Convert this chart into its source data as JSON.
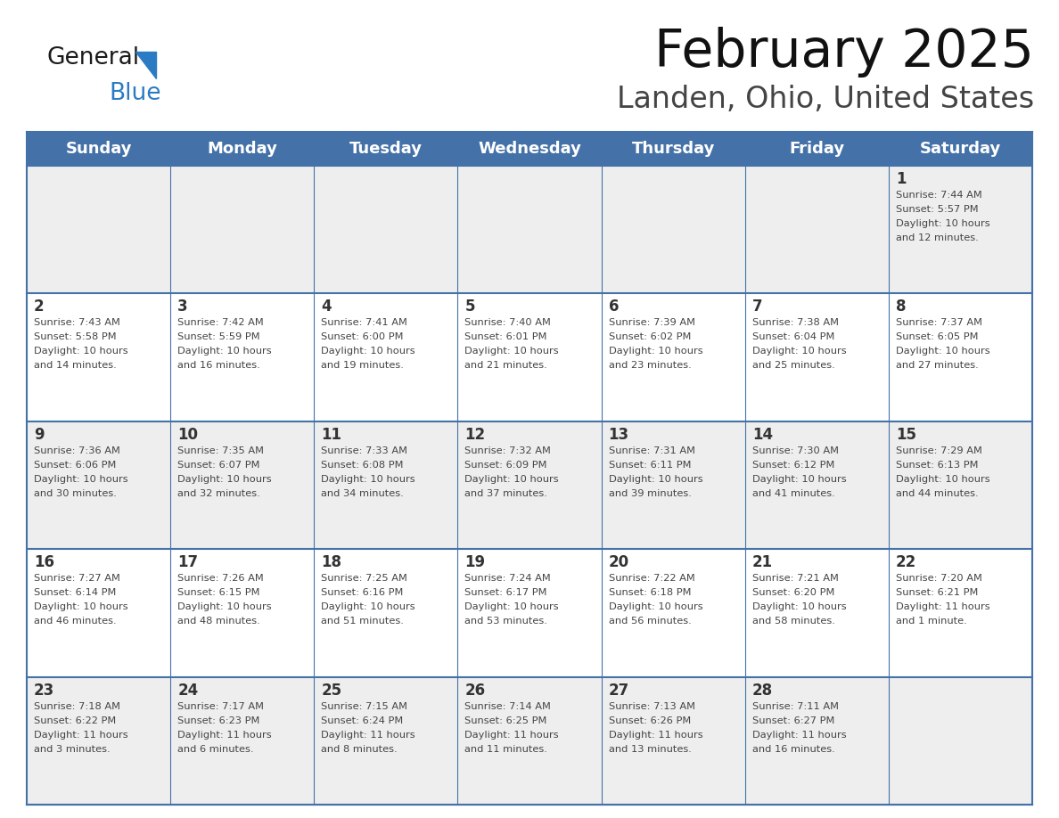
{
  "title": "February 2025",
  "subtitle": "Landen, Ohio, United States",
  "header_bg": "#4472A8",
  "header_text_color": "#FFFFFF",
  "days_of_week": [
    "Sunday",
    "Monday",
    "Tuesday",
    "Wednesday",
    "Thursday",
    "Friday",
    "Saturday"
  ],
  "row_colors": [
    "#EEEEEE",
    "#FFFFFF"
  ],
  "border_color": "#4472A8",
  "text_color": "#333333",
  "calendar_data": [
    [
      null,
      null,
      null,
      null,
      null,
      null,
      {
        "day": "1",
        "sunrise": "7:44 AM",
        "sunset": "5:57 PM",
        "daylight": "10 hours and 12 minutes."
      }
    ],
    [
      {
        "day": "2",
        "sunrise": "7:43 AM",
        "sunset": "5:58 PM",
        "daylight": "10 hours and 14 minutes."
      },
      {
        "day": "3",
        "sunrise": "7:42 AM",
        "sunset": "5:59 PM",
        "daylight": "10 hours and 16 minutes."
      },
      {
        "day": "4",
        "sunrise": "7:41 AM",
        "sunset": "6:00 PM",
        "daylight": "10 hours and 19 minutes."
      },
      {
        "day": "5",
        "sunrise": "7:40 AM",
        "sunset": "6:01 PM",
        "daylight": "10 hours and 21 minutes."
      },
      {
        "day": "6",
        "sunrise": "7:39 AM",
        "sunset": "6:02 PM",
        "daylight": "10 hours and 23 minutes."
      },
      {
        "day": "7",
        "sunrise": "7:38 AM",
        "sunset": "6:04 PM",
        "daylight": "10 hours and 25 minutes."
      },
      {
        "day": "8",
        "sunrise": "7:37 AM",
        "sunset": "6:05 PM",
        "daylight": "10 hours and 27 minutes."
      }
    ],
    [
      {
        "day": "9",
        "sunrise": "7:36 AM",
        "sunset": "6:06 PM",
        "daylight": "10 hours and 30 minutes."
      },
      {
        "day": "10",
        "sunrise": "7:35 AM",
        "sunset": "6:07 PM",
        "daylight": "10 hours and 32 minutes."
      },
      {
        "day": "11",
        "sunrise": "7:33 AM",
        "sunset": "6:08 PM",
        "daylight": "10 hours and 34 minutes."
      },
      {
        "day": "12",
        "sunrise": "7:32 AM",
        "sunset": "6:09 PM",
        "daylight": "10 hours and 37 minutes."
      },
      {
        "day": "13",
        "sunrise": "7:31 AM",
        "sunset": "6:11 PM",
        "daylight": "10 hours and 39 minutes."
      },
      {
        "day": "14",
        "sunrise": "7:30 AM",
        "sunset": "6:12 PM",
        "daylight": "10 hours and 41 minutes."
      },
      {
        "day": "15",
        "sunrise": "7:29 AM",
        "sunset": "6:13 PM",
        "daylight": "10 hours and 44 minutes."
      }
    ],
    [
      {
        "day": "16",
        "sunrise": "7:27 AM",
        "sunset": "6:14 PM",
        "daylight": "10 hours and 46 minutes."
      },
      {
        "day": "17",
        "sunrise": "7:26 AM",
        "sunset": "6:15 PM",
        "daylight": "10 hours and 48 minutes."
      },
      {
        "day": "18",
        "sunrise": "7:25 AM",
        "sunset": "6:16 PM",
        "daylight": "10 hours and 51 minutes."
      },
      {
        "day": "19",
        "sunrise": "7:24 AM",
        "sunset": "6:17 PM",
        "daylight": "10 hours and 53 minutes."
      },
      {
        "day": "20",
        "sunrise": "7:22 AM",
        "sunset": "6:18 PM",
        "daylight": "10 hours and 56 minutes."
      },
      {
        "day": "21",
        "sunrise": "7:21 AM",
        "sunset": "6:20 PM",
        "daylight": "10 hours and 58 minutes."
      },
      {
        "day": "22",
        "sunrise": "7:20 AM",
        "sunset": "6:21 PM",
        "daylight": "11 hours and 1 minute."
      }
    ],
    [
      {
        "day": "23",
        "sunrise": "7:18 AM",
        "sunset": "6:22 PM",
        "daylight": "11 hours and 3 minutes."
      },
      {
        "day": "24",
        "sunrise": "7:17 AM",
        "sunset": "6:23 PM",
        "daylight": "11 hours and 6 minutes."
      },
      {
        "day": "25",
        "sunrise": "7:15 AM",
        "sunset": "6:24 PM",
        "daylight": "11 hours and 8 minutes."
      },
      {
        "day": "26",
        "sunrise": "7:14 AM",
        "sunset": "6:25 PM",
        "daylight": "11 hours and 11 minutes."
      },
      {
        "day": "27",
        "sunrise": "7:13 AM",
        "sunset": "6:26 PM",
        "daylight": "11 hours and 13 minutes."
      },
      {
        "day": "28",
        "sunrise": "7:11 AM",
        "sunset": "6:27 PM",
        "daylight": "11 hours and 16 minutes."
      },
      null
    ]
  ],
  "logo_color_general": "#1a1a1a",
  "logo_color_blue": "#2B7BC4",
  "logo_triangle_color": "#2B7BC4",
  "fig_width": 11.88,
  "fig_height": 9.18,
  "dpi": 100
}
